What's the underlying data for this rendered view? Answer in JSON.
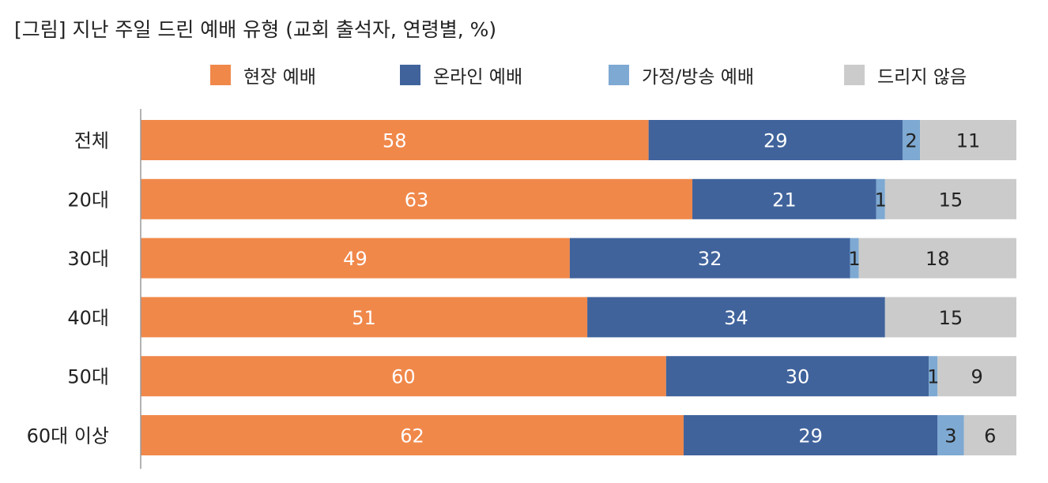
{
  "title": "[그림] 지난 주일 드린 예배 유형 (교회 출석자, 연령별, %)",
  "colors": {
    "현장 예배": "#f0884a",
    "온라인 예배": "#40639c",
    "가정/방송 예배": "#7ea9d2",
    "드리지 않음": "#cbcbcb"
  },
  "chart_data": {
    "type": "bar",
    "orientation": "horizontal",
    "stacked": true,
    "title": "[그림] 지난 주일 드린 예배 유형 (교회 출석자, 연령별, %)",
    "categories": [
      "전체",
      "20대",
      "30대",
      "40대",
      "50대",
      "60대 이상"
    ],
    "series": [
      {
        "name": "현장 예배",
        "values": [
          58,
          63,
          49,
          51,
          60,
          62
        ]
      },
      {
        "name": "온라인 예배",
        "values": [
          29,
          21,
          32,
          34,
          30,
          29
        ]
      },
      {
        "name": "가정/방송 예배",
        "values": [
          2,
          1,
          1,
          0,
          1,
          3
        ]
      },
      {
        "name": "드리지 않음",
        "values": [
          11,
          15,
          18,
          15,
          9,
          6
        ]
      }
    ],
    "legend_position": "top",
    "xlim": [
      0,
      100
    ],
    "grid": false
  }
}
